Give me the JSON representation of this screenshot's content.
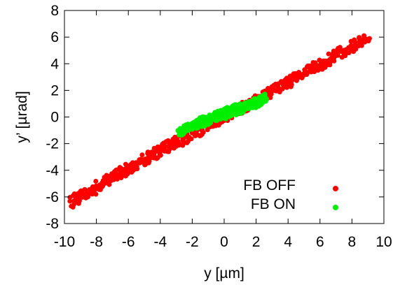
{
  "chart_data": {
    "type": "scatter",
    "title": "",
    "xlabel": "y [µm]",
    "ylabel": "y’ [µrad]",
    "xlim": [
      -10,
      10
    ],
    "ylim": [
      -8,
      8
    ],
    "xticks": [
      -10,
      -8,
      -6,
      -4,
      -2,
      0,
      2,
      4,
      6,
      8,
      10
    ],
    "yticks": [
      -8,
      -6,
      -4,
      -2,
      0,
      2,
      4,
      6,
      8
    ],
    "grid": false,
    "legend": {
      "placement": "bottom-right"
    },
    "series": [
      {
        "name": "FB OFF",
        "color": "#ff0000",
        "x": [
          -9.4,
          -9.2,
          -8.8,
          -8.5,
          -8.1,
          -7.8,
          -7.5,
          -7.1,
          -6.8,
          -6.5,
          -6.2,
          -5.9,
          -5.6,
          -5.3,
          -5.0,
          -4.7,
          -4.4,
          -4.1,
          -3.8,
          -3.5,
          -3.2,
          -2.9,
          -2.6,
          -2.3,
          -2.0,
          -1.7,
          -1.4,
          -1.1,
          -0.8,
          -0.5,
          -0.2,
          0.1,
          0.4,
          0.7,
          1.0,
          1.3,
          1.6,
          1.9,
          2.2,
          2.5,
          2.8,
          3.1,
          3.4,
          3.7,
          4.0,
          4.3,
          4.6,
          4.9,
          5.2,
          5.5,
          5.8,
          6.1,
          6.4,
          6.7,
          7.0,
          7.4,
          7.8,
          8.2,
          8.5,
          8.8
        ],
        "y": [
          -6.3,
          -6.0,
          -5.8,
          -5.6,
          -5.4,
          -5.1,
          -4.9,
          -4.6,
          -4.4,
          -4.2,
          -3.9,
          -3.8,
          -3.6,
          -3.4,
          -3.2,
          -3.0,
          -2.8,
          -2.6,
          -2.4,
          -2.2,
          -2.0,
          -1.8,
          -1.6,
          -1.5,
          -1.2,
          -1.0,
          -0.9,
          -0.7,
          -0.5,
          -0.3,
          -0.1,
          0.1,
          0.3,
          0.5,
          0.6,
          0.8,
          1.0,
          1.2,
          1.4,
          1.6,
          1.8,
          2.0,
          2.2,
          2.4,
          2.6,
          2.8,
          3.0,
          3.2,
          3.3,
          3.6,
          3.8,
          4.0,
          4.2,
          4.4,
          4.6,
          4.9,
          5.2,
          5.4,
          5.7,
          5.9
        ]
      },
      {
        "name": "FB ON",
        "color": "#00ee00",
        "x": [
          -2.6,
          -2.4,
          -2.2,
          -2.0,
          -1.8,
          -1.6,
          -1.4,
          -1.2,
          -1.0,
          -0.8,
          -0.6,
          -0.4,
          -0.2,
          0.0,
          0.2,
          0.4,
          0.6,
          0.8,
          1.0,
          1.2,
          1.4,
          1.6,
          1.8,
          2.0,
          2.2,
          2.4
        ],
        "y": [
          -1.0,
          -0.9,
          -0.8,
          -0.7,
          -0.6,
          -0.5,
          -0.4,
          -0.3,
          -0.2,
          -0.1,
          0.0,
          0.1,
          0.2,
          0.3,
          0.3,
          0.4,
          0.5,
          0.6,
          0.6,
          0.7,
          0.8,
          0.9,
          1.0,
          1.1,
          1.2,
          1.3
        ]
      }
    ]
  }
}
